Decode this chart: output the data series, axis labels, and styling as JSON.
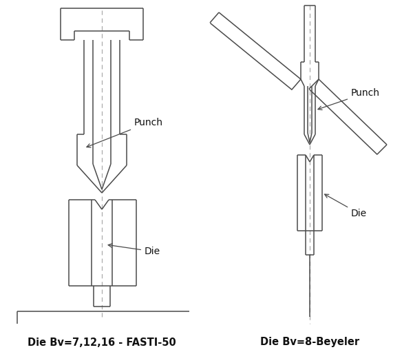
{
  "bg_color": "#ffffff",
  "line_color": "#4a4a4a",
  "dash_color": "#aaaaaa",
  "label_color": "#111111",
  "label1": "Die Bv=7,12,16 - FASTI-50",
  "label2": "Die Bv=8-Beyeler",
  "punch_label": "Punch",
  "die_label": "Die",
  "font_size": 10,
  "caption_font_size": 10.5
}
